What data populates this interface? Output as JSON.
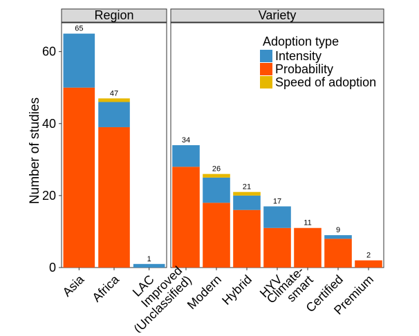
{
  "chart_data": {
    "type": "bar",
    "stacked": true,
    "ylabel": "Number of studies",
    "ylim": [
      0,
      68
    ],
    "yticks": [
      0,
      20,
      40,
      60
    ],
    "grid": false,
    "legend": {
      "title": "Adoption type",
      "placement": "top-right",
      "entries": [
        "Intensity",
        "Probability",
        "Speed of adoption"
      ]
    },
    "colors": {
      "Intensity": "#3a8fc7",
      "Probability": "#ff5100",
      "Speed of adoption": "#e6b800",
      "strip_bg": "#d9d9d9"
    },
    "panels": [
      {
        "title": "Region",
        "categories": [
          "Asia",
          "Africa",
          "LAC"
        ],
        "tick_labels": [
          [
            "Asia"
          ],
          [
            "Africa"
          ],
          [
            "LAC"
          ]
        ],
        "series": [
          {
            "name": "Probability",
            "values": [
              50,
              39,
              0
            ]
          },
          {
            "name": "Intensity",
            "values": [
              15,
              7,
              1
            ]
          },
          {
            "name": "Speed of adoption",
            "values": [
              0,
              1,
              0
            ]
          }
        ],
        "totals": [
          65,
          47,
          1
        ]
      },
      {
        "title": "Variety",
        "categories": [
          "Improved (Unclassified)",
          "Modern",
          "Hybrid",
          "HYV",
          "Climate-smart",
          "Certified",
          "Premium"
        ],
        "tick_labels": [
          [
            "Improved",
            "(Unclassified)"
          ],
          [
            "Modern"
          ],
          [
            "Hybrid"
          ],
          [
            "HYV"
          ],
          [
            "Climate-",
            "smart"
          ],
          [
            "Certified"
          ],
          [
            "Premium"
          ]
        ],
        "series": [
          {
            "name": "Probability",
            "values": [
              28,
              18,
              16,
              11,
              11,
              8,
              2
            ]
          },
          {
            "name": "Intensity",
            "values": [
              6,
              7,
              4,
              6,
              0,
              1,
              0
            ]
          },
          {
            "name": "Speed of adoption",
            "values": [
              0,
              1,
              1,
              0,
              0,
              0,
              0
            ]
          }
        ],
        "totals": [
          34,
          26,
          21,
          17,
          11,
          9,
          2
        ]
      }
    ]
  }
}
